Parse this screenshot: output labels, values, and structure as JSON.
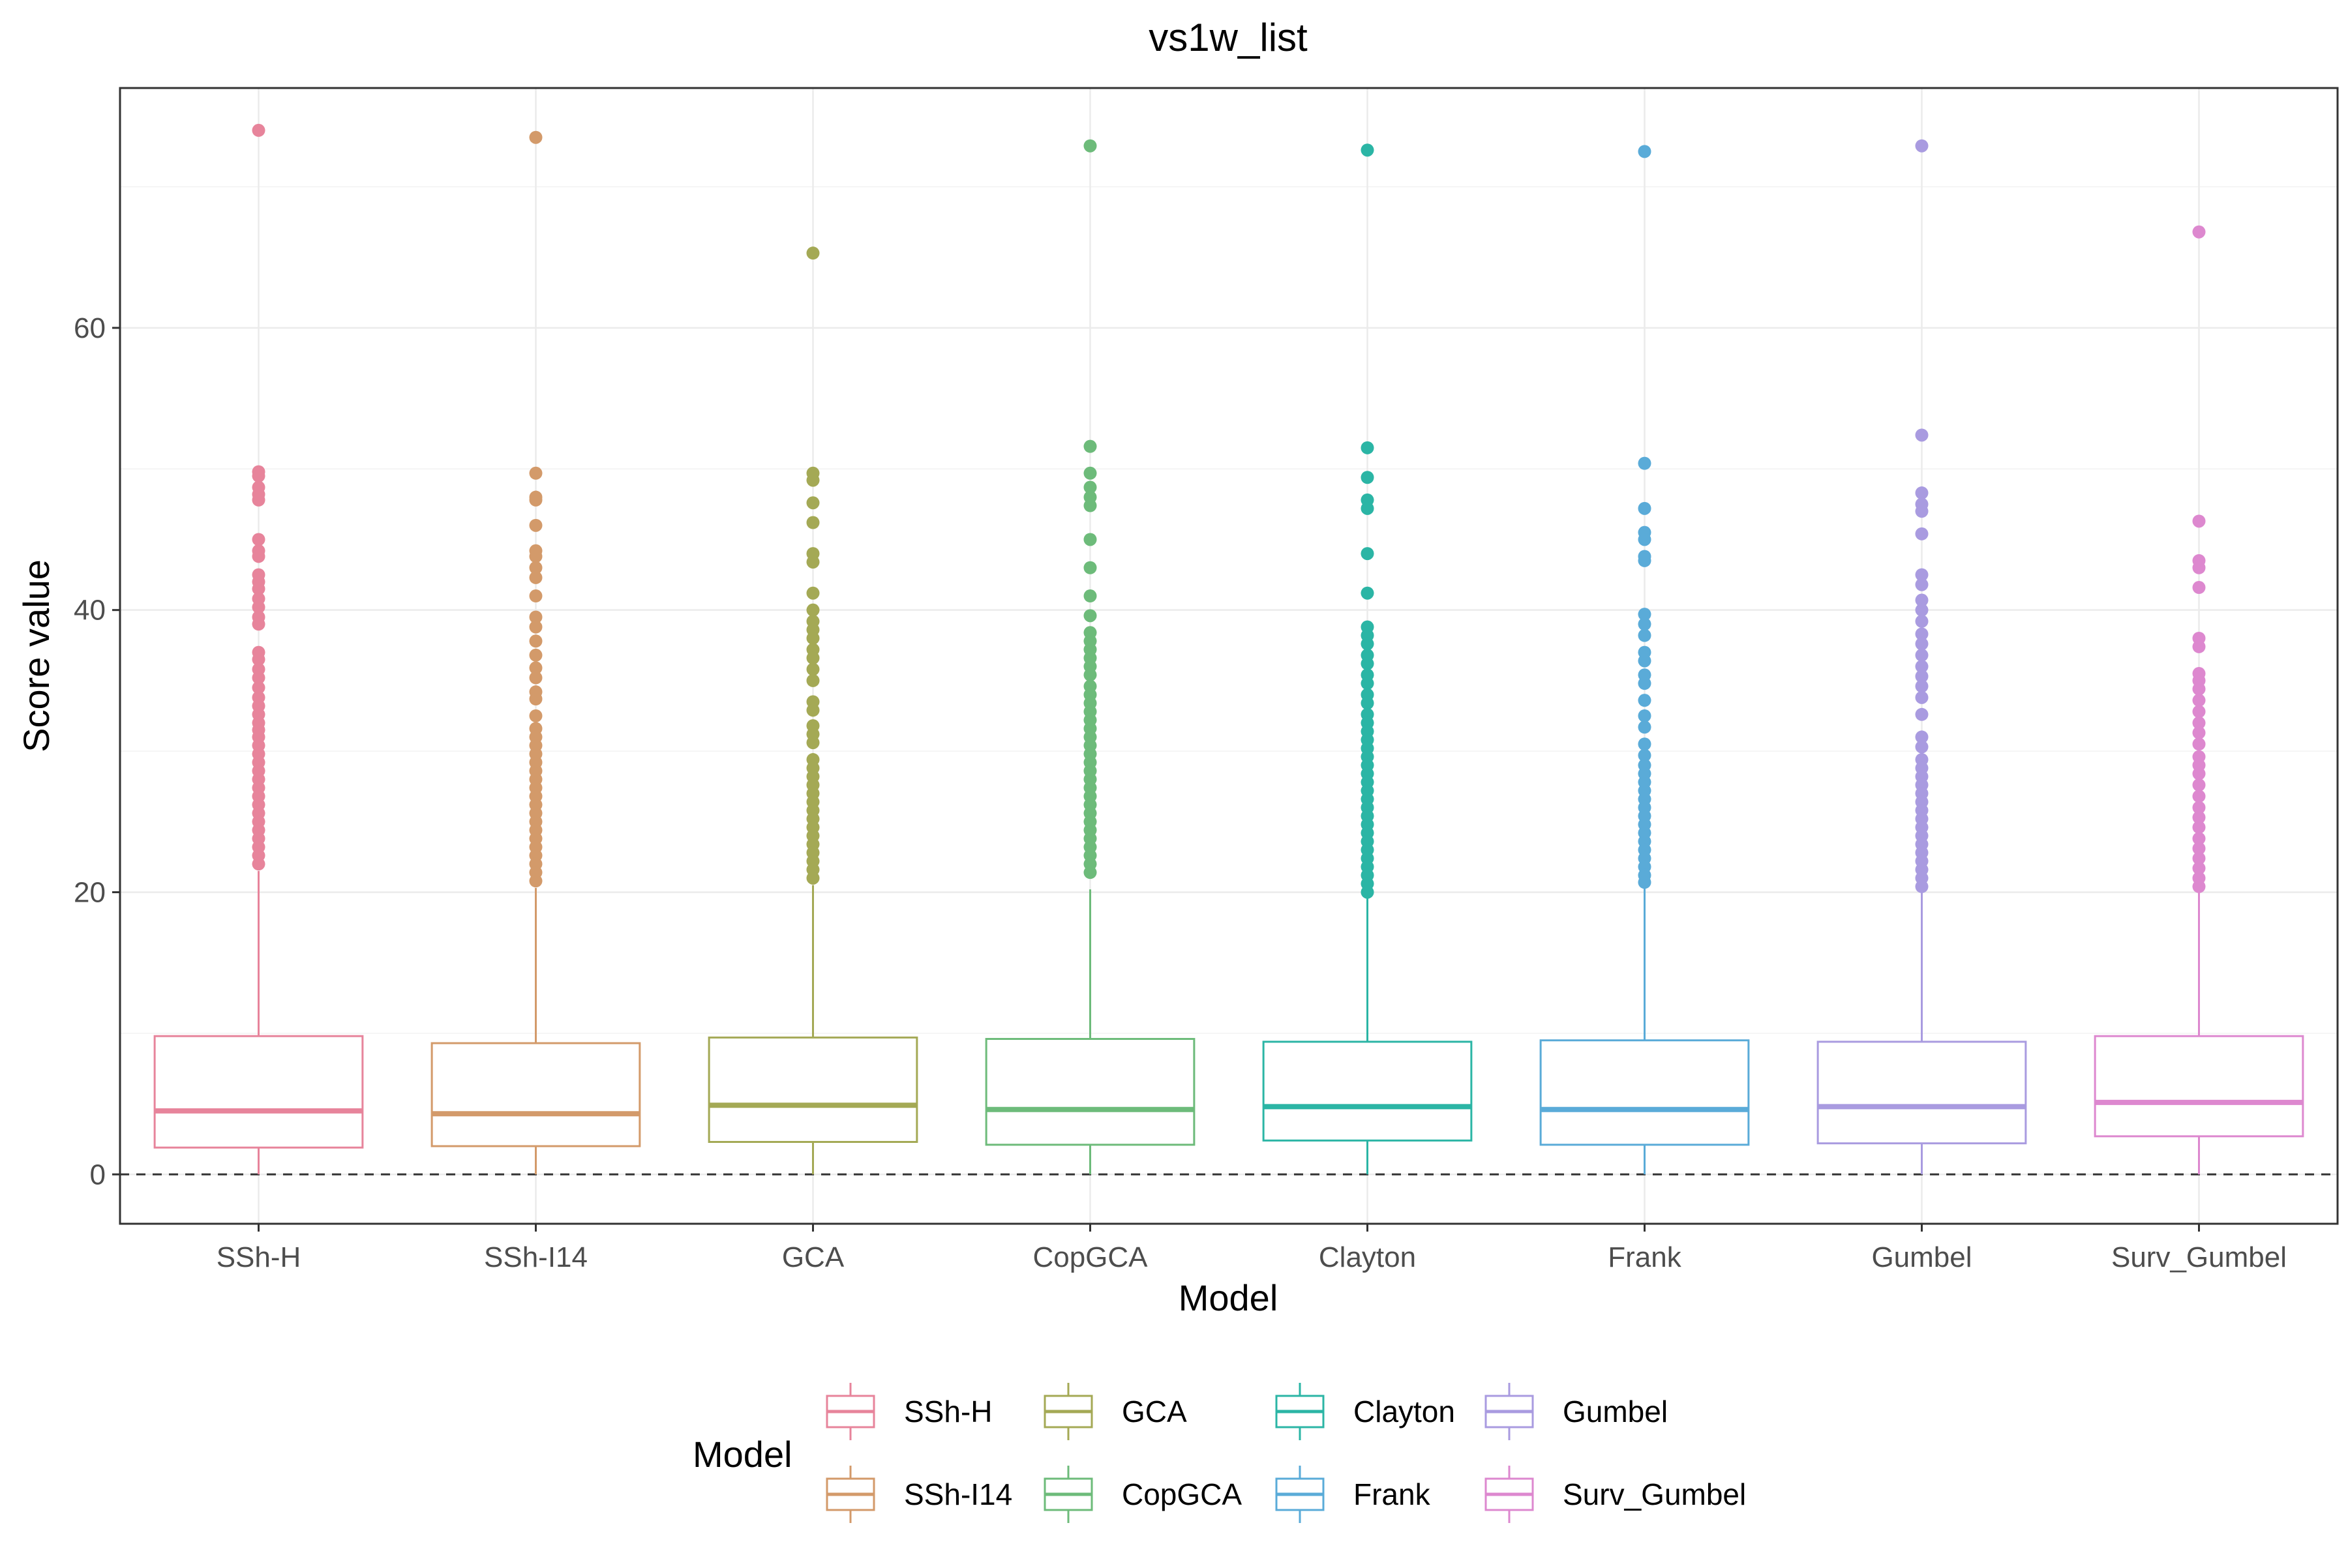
{
  "chart_data": {
    "type": "boxplot",
    "title": "vs1w_list",
    "xlabel": "Model",
    "ylabel": "Score value",
    "ylim": [
      -3.5,
      77
    ],
    "yticks": [
      0,
      20,
      40,
      60
    ],
    "reference_line": {
      "y": 0,
      "style": "dashed"
    },
    "grid": true,
    "legend": {
      "title": "Model",
      "position": "bottom",
      "columns": 4,
      "rows": 2
    },
    "categories": [
      "SSh-H",
      "SSh-I14",
      "GCA",
      "CopGCA",
      "Clayton",
      "Frank",
      "Gumbel",
      "Surv_Gumbel"
    ],
    "colors": [
      "#E7849B",
      "#D39A6A",
      "#A4A955",
      "#6DBB7A",
      "#2BB5A5",
      "#5AABD8",
      "#A99BE0",
      "#DD88CF"
    ],
    "series": [
      {
        "name": "SSh-H",
        "min": 0,
        "q1": 1.9,
        "median": 4.5,
        "q3": 9.8,
        "whisker_high": 21.5,
        "outliers": [
          74.0,
          49.8,
          49.5,
          48.7,
          48.2,
          47.8,
          45.0,
          44.2,
          43.8,
          42.5,
          42.0,
          41.5,
          40.8,
          40.2,
          39.5,
          39.0,
          37.0,
          36.5,
          35.8,
          35.2,
          34.5,
          33.8,
          33.2,
          32.6,
          32.0,
          31.5,
          31.0,
          30.4,
          29.8,
          29.2,
          28.6,
          28.0,
          27.4,
          26.8,
          26.2,
          25.6,
          25.0,
          24.4,
          23.8,
          23.2,
          22.6,
          22.0
        ]
      },
      {
        "name": "SSh-I14",
        "min": 0,
        "q1": 2.0,
        "median": 4.3,
        "q3": 9.3,
        "whisker_high": 20.3,
        "outliers": [
          73.5,
          49.7,
          48.0,
          47.8,
          46.0,
          44.2,
          43.8,
          43.0,
          42.3,
          41.0,
          39.5,
          38.8,
          37.8,
          36.8,
          35.9,
          35.2,
          34.2,
          33.7,
          32.5,
          31.6,
          31.0,
          30.4,
          29.8,
          29.2,
          28.6,
          28.0,
          27.4,
          26.8,
          26.2,
          25.6,
          25.0,
          24.4,
          23.8,
          23.2,
          22.6,
          22.0,
          21.4,
          20.8
        ]
      },
      {
        "name": "GCA",
        "min": 0,
        "q1": 2.3,
        "median": 4.9,
        "q3": 9.7,
        "whisker_high": 20.5,
        "outliers": [
          65.3,
          49.7,
          49.2,
          47.6,
          46.2,
          44.0,
          43.4,
          41.2,
          40.0,
          39.2,
          38.6,
          38.0,
          37.2,
          36.6,
          35.8,
          35.0,
          33.5,
          32.9,
          31.8,
          31.2,
          30.6,
          29.4,
          28.8,
          28.2,
          27.6,
          27.0,
          26.4,
          25.8,
          25.2,
          24.6,
          24.0,
          23.4,
          22.8,
          22.2,
          21.6,
          21.0
        ]
      },
      {
        "name": "CopGCA",
        "min": 0,
        "q1": 2.1,
        "median": 4.6,
        "q3": 9.6,
        "whisker_high": 20.2,
        "outliers": [
          72.9,
          51.6,
          49.7,
          48.7,
          48.0,
          47.4,
          45.0,
          43.0,
          41.0,
          39.6,
          38.4,
          37.8,
          37.2,
          36.6,
          36.0,
          35.4,
          34.6,
          34.0,
          33.4,
          32.8,
          32.2,
          31.6,
          31.0,
          30.4,
          29.8,
          29.2,
          28.6,
          28.0,
          27.4,
          26.8,
          26.2,
          25.6,
          25.0,
          24.4,
          23.8,
          23.2,
          22.6,
          22.0,
          21.4
        ]
      },
      {
        "name": "Clayton",
        "min": 0,
        "q1": 2.4,
        "median": 4.8,
        "q3": 9.4,
        "whisker_high": 19.8,
        "outliers": [
          72.6,
          51.5,
          49.4,
          47.8,
          47.2,
          44.0,
          41.2,
          38.8,
          38.2,
          37.6,
          36.8,
          36.2,
          35.4,
          34.8,
          34.0,
          33.4,
          32.6,
          32.0,
          31.4,
          30.8,
          30.2,
          29.6,
          29.0,
          28.4,
          27.8,
          27.2,
          26.6,
          26.0,
          25.4,
          24.8,
          24.2,
          23.6,
          23.0,
          22.4,
          21.8,
          21.2,
          20.6,
          20.0
        ]
      },
      {
        "name": "Frank",
        "min": 0,
        "q1": 2.1,
        "median": 4.6,
        "q3": 9.5,
        "whisker_high": 20.5,
        "outliers": [
          72.5,
          50.4,
          47.2,
          45.5,
          45.0,
          43.8,
          43.5,
          39.7,
          39.0,
          38.2,
          37.0,
          36.4,
          35.4,
          34.8,
          33.6,
          32.5,
          31.7,
          30.5,
          29.7,
          29.0,
          28.4,
          27.8,
          27.2,
          26.6,
          26.0,
          25.4,
          24.8,
          24.2,
          23.6,
          23.0,
          22.4,
          21.8,
          21.2,
          20.7
        ]
      },
      {
        "name": "Gumbel",
        "min": 0,
        "q1": 2.2,
        "median": 4.8,
        "q3": 9.4,
        "whisker_high": 20.2,
        "outliers": [
          72.9,
          52.4,
          48.3,
          47.5,
          47.0,
          45.4,
          42.5,
          41.8,
          40.7,
          40.0,
          39.2,
          38.3,
          37.6,
          36.8,
          36.0,
          35.3,
          34.6,
          33.8,
          32.6,
          31.0,
          30.3,
          29.4,
          28.8,
          28.2,
          27.6,
          27.0,
          26.4,
          25.8,
          25.2,
          24.6,
          24.0,
          23.4,
          22.8,
          22.2,
          21.6,
          21.0,
          20.4
        ]
      },
      {
        "name": "Surv_Gumbel",
        "min": 0,
        "q1": 2.7,
        "median": 5.1,
        "q3": 9.8,
        "whisker_high": 20.2,
        "outliers": [
          66.8,
          46.3,
          43.5,
          43.0,
          41.6,
          38.0,
          37.4,
          35.5,
          35.0,
          34.4,
          33.6,
          32.8,
          32.0,
          31.3,
          30.5,
          29.6,
          29.0,
          28.4,
          27.6,
          26.8,
          26.0,
          25.3,
          24.6,
          23.8,
          23.1,
          22.4,
          21.7,
          21.0,
          20.4
        ]
      }
    ]
  }
}
